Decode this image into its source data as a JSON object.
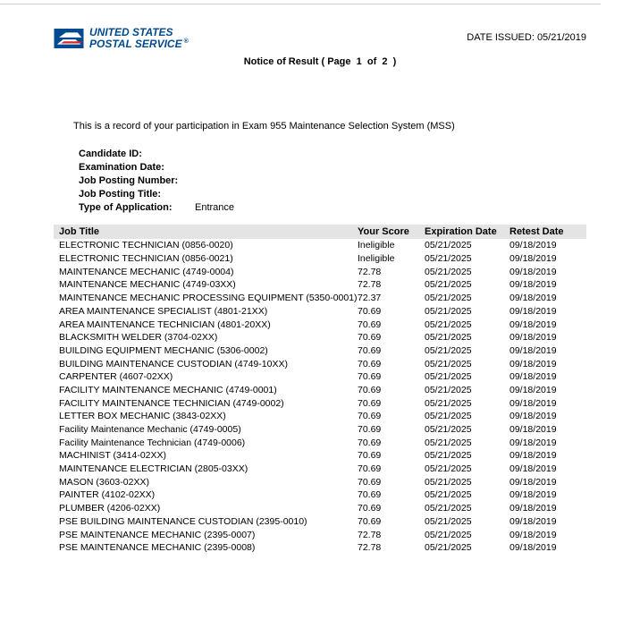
{
  "header": {
    "logo_line1": "UNITED STATES",
    "logo_line2": "POSTAL SERVICE",
    "date_issued_label": "DATE ISSUED:",
    "date_issued_value": "05/21/2019"
  },
  "notice": {
    "prefix": "Notice of Result ( Page",
    "page_current": "1",
    "of": "of",
    "page_total": "2",
    "suffix": ")"
  },
  "intro": "This is a record of your participation in Exam 955 Maintenance Selection System (MSS)",
  "meta": {
    "candidate_id_label": "Candidate ID:",
    "candidate_id_value": "",
    "exam_date_label": "Examination Date:",
    "exam_date_value": "",
    "posting_number_label": "Job Posting Number:",
    "posting_number_value": "",
    "posting_title_label": "Job Posting Title:",
    "posting_title_value": "",
    "app_type_label": "Type of Application:",
    "app_type_value": "Entrance"
  },
  "table": {
    "columns": {
      "job_title": "Job Title",
      "your_score": "Your Score",
      "expiration_date": "Expiration Date",
      "retest_date": "Retest Date"
    },
    "rows": [
      {
        "title": "ELECTRONIC TECHNICIAN (0856-0020)",
        "score": "Ineligible",
        "exp": "05/21/2025",
        "retest": "09/18/2019"
      },
      {
        "title": "ELECTRONIC TECHNICIAN (0856-0021)",
        "score": "Ineligible",
        "exp": "05/21/2025",
        "retest": "09/18/2019"
      },
      {
        "title": "MAINTENANCE MECHANIC (4749-0004)",
        "score": "72.78",
        "exp": "05/21/2025",
        "retest": "09/18/2019"
      },
      {
        "title": "MAINTENANCE MECHANIC (4749-03XX)",
        "score": "72.78",
        "exp": "05/21/2025",
        "retest": "09/18/2019"
      },
      {
        "title": "MAINTENANCE MECHANIC PROCESSING EQUIPMENT (5350-0001)",
        "score": "72.37",
        "exp": "05/21/2025",
        "retest": "09/18/2019"
      },
      {
        "title": "AREA MAINTENANCE SPECIALIST (4801-21XX)",
        "score": "70.69",
        "exp": "05/21/2025",
        "retest": "09/18/2019"
      },
      {
        "title": "AREA MAINTENANCE TECHNICIAN (4801-20XX)",
        "score": "70.69",
        "exp": "05/21/2025",
        "retest": "09/18/2019"
      },
      {
        "title": "BLACKSMITH WELDER (3704-02XX)",
        "score": "70.69",
        "exp": "05/21/2025",
        "retest": "09/18/2019"
      },
      {
        "title": "BUILDING EQUIPMENT MECHANIC (5306-0002)",
        "score": "70.69",
        "exp": "05/21/2025",
        "retest": "09/18/2019"
      },
      {
        "title": "BUILDING MAINTENANCE CUSTODIAN (4749-10XX)",
        "score": "70.69",
        "exp": "05/21/2025",
        "retest": "09/18/2019"
      },
      {
        "title": "CARPENTER (4607-02XX)",
        "score": "70.69",
        "exp": "05/21/2025",
        "retest": "09/18/2019"
      },
      {
        "title": "FACILITY MAINTENANCE MECHANIC (4749-0001)",
        "score": "70.69",
        "exp": "05/21/2025",
        "retest": "09/18/2019"
      },
      {
        "title": "FACILITY MAINTENANCE TECHNICIAN (4749-0002)",
        "score": "70.69",
        "exp": "05/21/2025",
        "retest": "09/18/2019"
      },
      {
        "title": "LETTER BOX MECHANIC (3843-02XX)",
        "score": "70.69",
        "exp": "05/21/2025",
        "retest": "09/18/2019"
      },
      {
        "title": "Facility Maintenance Mechanic (4749-0005)",
        "score": "70.69",
        "exp": "05/21/2025",
        "retest": "09/18/2019"
      },
      {
        "title": "Facility Maintenance Technician (4749-0006)",
        "score": "70.69",
        "exp": "05/21/2025",
        "retest": "09/18/2019"
      },
      {
        "title": "MACHINIST (3414-02XX)",
        "score": "70.69",
        "exp": "05/21/2025",
        "retest": "09/18/2019"
      },
      {
        "title": "MAINTENANCE ELECTRICIAN (2805-03XX)",
        "score": "70.69",
        "exp": "05/21/2025",
        "retest": "09/18/2019"
      },
      {
        "title": "MASON (3603-02XX)",
        "score": "70.69",
        "exp": "05/21/2025",
        "retest": "09/18/2019"
      },
      {
        "title": "PAINTER (4102-02XX)",
        "score": "70.69",
        "exp": "05/21/2025",
        "retest": "09/18/2019"
      },
      {
        "title": "PLUMBER (4206-02XX)",
        "score": "70.69",
        "exp": "05/21/2025",
        "retest": "09/18/2019"
      },
      {
        "title": "PSE BUILDING MAINTENANCE CUSTODIAN (2395-0010)",
        "score": "70.69",
        "exp": "05/21/2025",
        "retest": "09/18/2019"
      },
      {
        "title": "PSE MAINTENANCE  MECHANIC (2395-0007)",
        "score": "72.78",
        "exp": "05/21/2025",
        "retest": "09/18/2019"
      },
      {
        "title": "PSE MAINTENANCE MECHANIC (2395-0008)",
        "score": "72.78",
        "exp": "05/21/2025",
        "retest": "09/18/2019"
      }
    ]
  },
  "colors": {
    "brand_blue": "#004a8f",
    "brand_red": "#d9252a",
    "header_bg": "#e4e4e4",
    "text": "#000000",
    "page_bg": "#ffffff"
  }
}
